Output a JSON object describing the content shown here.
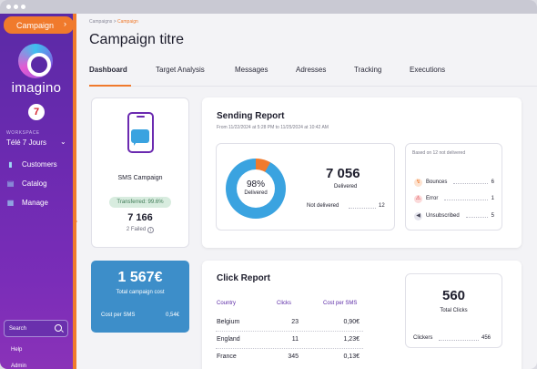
{
  "sidebar": {
    "campaign_label": "Campaign",
    "brand": "imagino",
    "brand_badge": "7",
    "workspace_label": "WORKSPACE",
    "workspace_name": "Télé 7 Jours",
    "items": [
      {
        "label": "Customers",
        "icon": "customers-icon"
      },
      {
        "label": "Catalog",
        "icon": "catalog-icon"
      },
      {
        "label": "Manage",
        "icon": "manage-icon"
      }
    ],
    "search_placeholder": "Search",
    "help": "Help",
    "admin": "Admin"
  },
  "header": {
    "breadcrumb_root": "Campaigns",
    "breadcrumb_sep": ">",
    "breadcrumb_current": "Campaign",
    "title": "Campaign titre",
    "tabs": [
      "Dashboard",
      "Target Analysis",
      "Messages",
      "Adresses",
      "Tracking",
      "Executions"
    ],
    "active_tab": "Dashboard"
  },
  "sms_card": {
    "title": "SMS Campaign",
    "transferred": "Transferred: 99.6%",
    "count": "7 166",
    "failed": "2 Failed"
  },
  "cost_card": {
    "value": "1 567€",
    "label": "Total campaign cost",
    "per_sms_label": "Cost per SMS",
    "per_sms_value": "0,54€"
  },
  "sending_report": {
    "title": "Sending Report",
    "period": "From 11/22/2024 at 5:28 PM to 11/25/2024 at 10:42 AM",
    "donut_percent": "98%",
    "donut_fraction": 0.98,
    "donut_label": "Delivered",
    "delivered_value": "7 056",
    "delivered_label": "Delivered",
    "not_delivered_label": "Not delivered",
    "not_delivered_value": "12",
    "breakdown_title": "Based on 12 not delivered",
    "breakdown": [
      {
        "label": "Bounces",
        "value": "6",
        "icon": "bounce-icon"
      },
      {
        "label": "Error",
        "value": "1",
        "icon": "warning-icon"
      },
      {
        "label": "Unsubscribed",
        "value": "5",
        "icon": "unsubscribe-icon"
      }
    ]
  },
  "click_report": {
    "title": "Click Report",
    "columns": [
      "Country",
      "Clicks",
      "Cost per SMS"
    ],
    "rows": [
      {
        "country": "Belgium",
        "clicks": "23",
        "cost": "0,90€"
      },
      {
        "country": "England",
        "clicks": "11",
        "cost": "1,23€"
      },
      {
        "country": "France",
        "clicks": "345",
        "cost": "0,13€"
      }
    ],
    "total_clicks_value": "560",
    "total_clicks_label": "Total Clicks",
    "clickers_label": "Clickers",
    "clickers_value": "456"
  },
  "colors": {
    "accent": "#f07a2c",
    "sidebar": "#6b2ab0",
    "donut_delivered": "#3aa3e0",
    "cost_card": "#3d8ec9"
  }
}
